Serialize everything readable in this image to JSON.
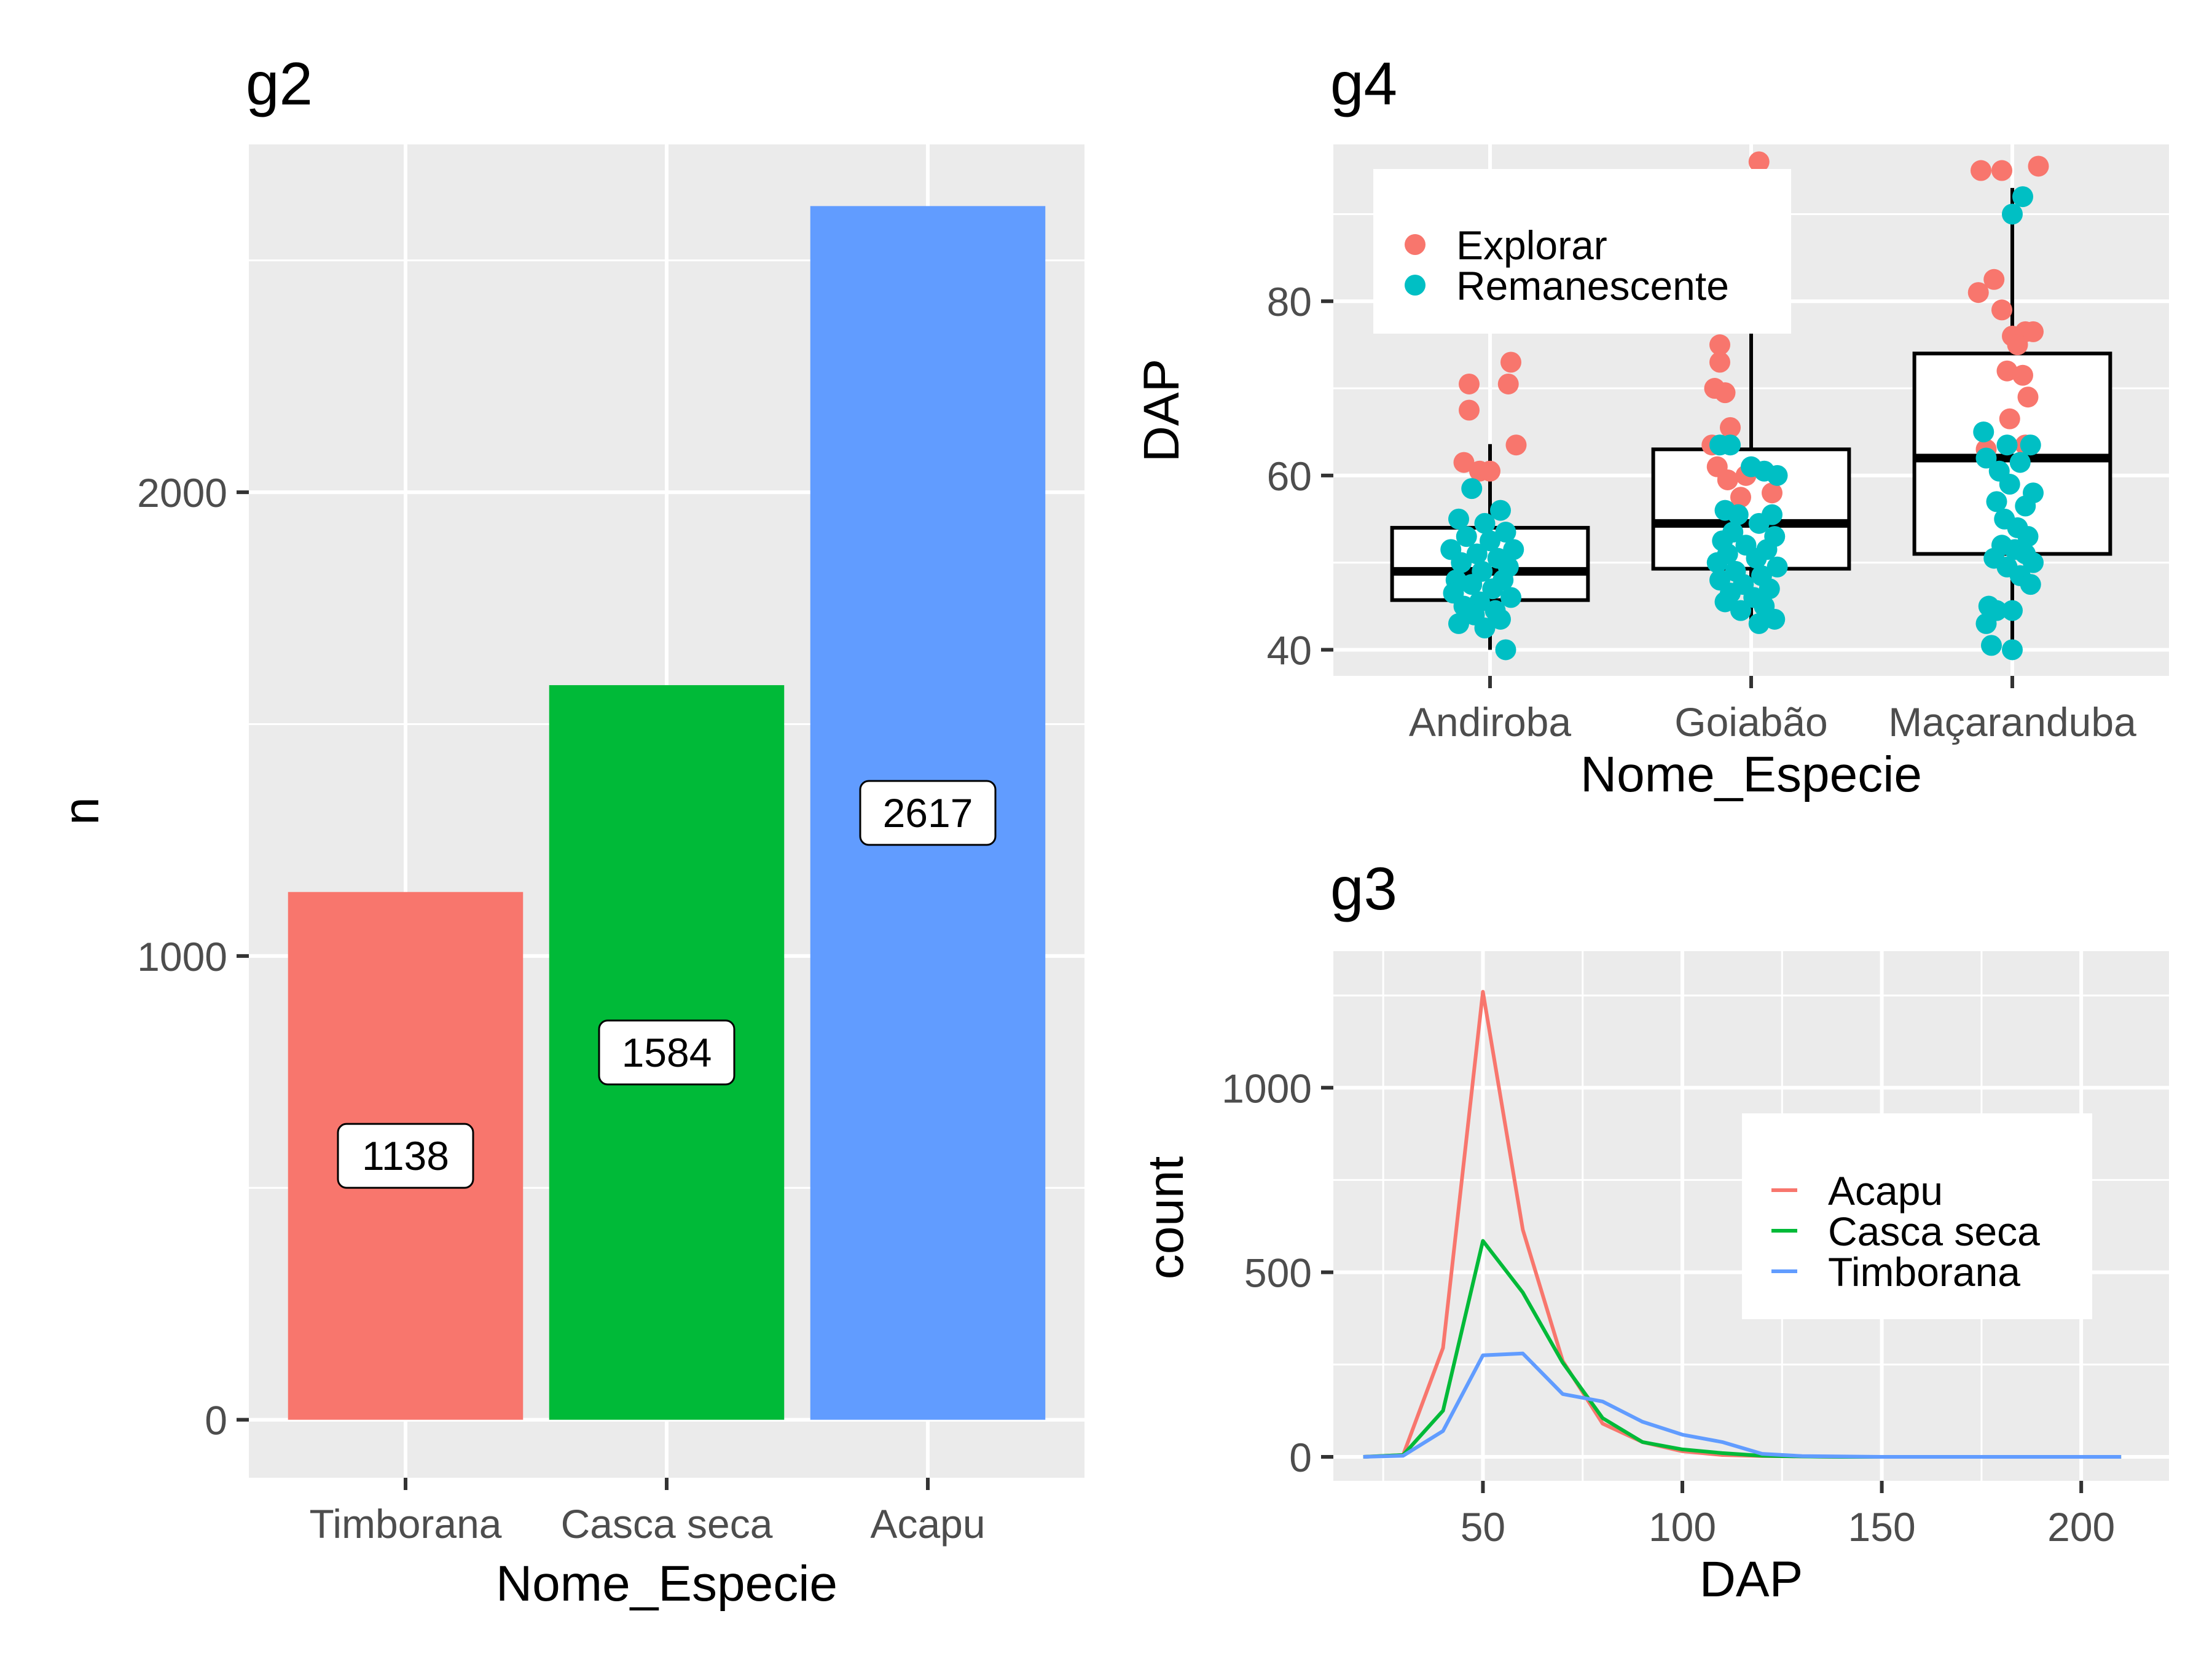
{
  "chart_data": [
    {
      "id": "g2",
      "type": "bar",
      "title": "g2",
      "xlabel": "Nome_Especie",
      "ylabel": "n",
      "categories": [
        "Timborana",
        "Casca seca",
        "Acapu"
      ],
      "values": [
        1138,
        1584,
        2617
      ],
      "value_labels": [
        "1138",
        "1584",
        "2617"
      ],
      "colors": [
        "#F8766D",
        "#00BA38",
        "#619CFF"
      ],
      "ylim": [
        -125,
        2750
      ],
      "yticks": [
        0,
        1000,
        2000
      ],
      "ytick_labels": [
        "0",
        "1000",
        "2000"
      ],
      "grid": true
    },
    {
      "id": "g4",
      "type": "scatter",
      "subtype": "boxplot-with-jitter",
      "title": "g4",
      "xlabel": "Nome_Especie",
      "ylabel": "DAP",
      "categories": [
        "Andiroba",
        "Goiabão",
        "Maçaranduba"
      ],
      "ylim": [
        37,
        98
      ],
      "yticks": [
        40,
        60,
        80
      ],
      "ytick_labels": [
        "40",
        "60",
        "80"
      ],
      "grid": true,
      "legend_position": "top-left",
      "boxes": [
        {
          "category": "Andiroba",
          "lower_whisker": 40,
          "q1": 45.7,
          "median": 49,
          "q3": 54,
          "upper_whisker": 63.6
        },
        {
          "category": "Goiabão",
          "lower_whisker": 43,
          "q1": 49.3,
          "median": 54.5,
          "q3": 63,
          "upper_whisker": 79
        },
        {
          "category": "Maçaranduba",
          "lower_whisker": 40,
          "q1": 51,
          "median": 62,
          "q3": 74,
          "upper_whisker": 93
        }
      ],
      "series": [
        {
          "name": "Explorar",
          "color": "#F8766D",
          "points": [
            {
              "category": "Andiroba",
              "offset": -0.08,
              "y": 70.5
            },
            {
              "category": "Andiroba",
              "offset": 0.07,
              "y": 70.5
            },
            {
              "category": "Andiroba",
              "offset": 0.08,
              "y": 73
            },
            {
              "category": "Andiroba",
              "offset": -0.08,
              "y": 67.5
            },
            {
              "category": "Andiroba",
              "offset": 0.1,
              "y": 63.5
            },
            {
              "category": "Andiroba",
              "offset": -0.1,
              "y": 61.5
            },
            {
              "category": "Andiroba",
              "offset": -0.04,
              "y": 60.5
            },
            {
              "category": "Andiroba",
              "offset": 0.0,
              "y": 60.5
            },
            {
              "category": "Goiabão",
              "offset": 0.03,
              "y": 96
            },
            {
              "category": "Goiabão",
              "offset": -0.12,
              "y": 75
            },
            {
              "category": "Goiabão",
              "offset": -0.12,
              "y": 73
            },
            {
              "category": "Goiabão",
              "offset": -0.14,
              "y": 70
            },
            {
              "category": "Goiabão",
              "offset": -0.1,
              "y": 69.5
            },
            {
              "category": "Goiabão",
              "offset": -0.08,
              "y": 65.5
            },
            {
              "category": "Goiabão",
              "offset": -0.15,
              "y": 63.5
            },
            {
              "category": "Goiabão",
              "offset": -0.13,
              "y": 61
            },
            {
              "category": "Goiabão",
              "offset": -0.02,
              "y": 60
            },
            {
              "category": "Goiabão",
              "offset": -0.09,
              "y": 59.5
            },
            {
              "category": "Goiabão",
              "offset": 0.08,
              "y": 58
            },
            {
              "category": "Goiabão",
              "offset": -0.04,
              "y": 57.5
            },
            {
              "category": "Maçaranduba",
              "offset": -0.12,
              "y": 95
            },
            {
              "category": "Maçaranduba",
              "offset": -0.04,
              "y": 95
            },
            {
              "category": "Maçaranduba",
              "offset": 0.1,
              "y": 95.5
            },
            {
              "category": "Maçaranduba",
              "offset": -0.07,
              "y": 82.5
            },
            {
              "category": "Maçaranduba",
              "offset": -0.13,
              "y": 81
            },
            {
              "category": "Maçaranduba",
              "offset": -0.04,
              "y": 79
            },
            {
              "category": "Maçaranduba",
              "offset": 0.0,
              "y": 76
            },
            {
              "category": "Maçaranduba",
              "offset": 0.05,
              "y": 76.5
            },
            {
              "category": "Maçaranduba",
              "offset": 0.08,
              "y": 76.5
            },
            {
              "category": "Maçaranduba",
              "offset": 0.02,
              "y": 75
            },
            {
              "category": "Maçaranduba",
              "offset": -0.02,
              "y": 72
            },
            {
              "category": "Maçaranduba",
              "offset": 0.04,
              "y": 71.5
            },
            {
              "category": "Maçaranduba",
              "offset": 0.06,
              "y": 69
            },
            {
              "category": "Maçaranduba",
              "offset": -0.01,
              "y": 66.5
            },
            {
              "category": "Maçaranduba",
              "offset": -0.1,
              "y": 63
            },
            {
              "category": "Maçaranduba",
              "offset": 0.05,
              "y": 63.5
            }
          ]
        },
        {
          "name": "Remanescente",
          "color": "#00BFC4",
          "points": [
            {
              "category": "Andiroba",
              "offset": -0.07,
              "y": 58.5
            },
            {
              "category": "Andiroba",
              "offset": 0.04,
              "y": 56
            },
            {
              "category": "Andiroba",
              "offset": -0.12,
              "y": 55
            },
            {
              "category": "Andiroba",
              "offset": -0.02,
              "y": 54.5
            },
            {
              "category": "Andiroba",
              "offset": 0.06,
              "y": 53.5
            },
            {
              "category": "Andiroba",
              "offset": -0.09,
              "y": 53
            },
            {
              "category": "Andiroba",
              "offset": 0.0,
              "y": 52.5
            },
            {
              "category": "Andiroba",
              "offset": -0.15,
              "y": 51.5
            },
            {
              "category": "Andiroba",
              "offset": 0.09,
              "y": 51.5
            },
            {
              "category": "Andiroba",
              "offset": -0.05,
              "y": 51
            },
            {
              "category": "Andiroba",
              "offset": 0.03,
              "y": 50.5
            },
            {
              "category": "Andiroba",
              "offset": -0.11,
              "y": 50
            },
            {
              "category": "Andiroba",
              "offset": 0.07,
              "y": 49.5
            },
            {
              "category": "Andiroba",
              "offset": -0.03,
              "y": 49
            },
            {
              "category": "Andiroba",
              "offset": -0.13,
              "y": 48
            },
            {
              "category": "Andiroba",
              "offset": 0.05,
              "y": 48
            },
            {
              "category": "Andiroba",
              "offset": -0.07,
              "y": 47.5
            },
            {
              "category": "Andiroba",
              "offset": 0.01,
              "y": 47
            },
            {
              "category": "Andiroba",
              "offset": -0.14,
              "y": 46.5
            },
            {
              "category": "Andiroba",
              "offset": 0.08,
              "y": 46
            },
            {
              "category": "Andiroba",
              "offset": -0.04,
              "y": 45.5
            },
            {
              "category": "Andiroba",
              "offset": -0.1,
              "y": 45
            },
            {
              "category": "Andiroba",
              "offset": 0.02,
              "y": 44.5
            },
            {
              "category": "Andiroba",
              "offset": -0.06,
              "y": 44
            },
            {
              "category": "Andiroba",
              "offset": -0.12,
              "y": 43
            },
            {
              "category": "Andiroba",
              "offset": 0.04,
              "y": 43.5
            },
            {
              "category": "Andiroba",
              "offset": -0.02,
              "y": 42.5
            },
            {
              "category": "Andiroba",
              "offset": 0.06,
              "y": 40
            },
            {
              "category": "Goiabão",
              "offset": -0.12,
              "y": 63.5
            },
            {
              "category": "Goiabão",
              "offset": -0.08,
              "y": 63.5
            },
            {
              "category": "Goiabão",
              "offset": 0.0,
              "y": 61
            },
            {
              "category": "Goiabão",
              "offset": 0.05,
              "y": 60.5
            },
            {
              "category": "Goiabão",
              "offset": 0.1,
              "y": 60
            },
            {
              "category": "Goiabão",
              "offset": -0.1,
              "y": 56
            },
            {
              "category": "Goiabão",
              "offset": -0.05,
              "y": 55.5
            },
            {
              "category": "Goiabão",
              "offset": 0.08,
              "y": 55.5
            },
            {
              "category": "Goiabão",
              "offset": 0.03,
              "y": 54.5
            },
            {
              "category": "Goiabão",
              "offset": -0.07,
              "y": 53.5
            },
            {
              "category": "Goiabão",
              "offset": 0.09,
              "y": 53
            },
            {
              "category": "Goiabão",
              "offset": -0.11,
              "y": 52.5
            },
            {
              "category": "Goiabão",
              "offset": -0.02,
              "y": 52
            },
            {
              "category": "Goiabão",
              "offset": 0.06,
              "y": 51.5
            },
            {
              "category": "Goiabão",
              "offset": -0.09,
              "y": 51
            },
            {
              "category": "Goiabão",
              "offset": 0.02,
              "y": 50.5
            },
            {
              "category": "Goiabão",
              "offset": -0.13,
              "y": 50
            },
            {
              "category": "Goiabão",
              "offset": 0.1,
              "y": 49.5
            },
            {
              "category": "Goiabão",
              "offset": -0.06,
              "y": 49
            },
            {
              "category": "Goiabão",
              "offset": 0.04,
              "y": 48.5
            },
            {
              "category": "Goiabão",
              "offset": -0.12,
              "y": 48
            },
            {
              "category": "Goiabão",
              "offset": -0.03,
              "y": 47.5
            },
            {
              "category": "Goiabão",
              "offset": 0.07,
              "y": 47
            },
            {
              "category": "Goiabão",
              "offset": -0.08,
              "y": 46.5
            },
            {
              "category": "Goiabão",
              "offset": 0.01,
              "y": 46
            },
            {
              "category": "Goiabão",
              "offset": -0.1,
              "y": 45.5
            },
            {
              "category": "Goiabão",
              "offset": 0.05,
              "y": 45
            },
            {
              "category": "Goiabão",
              "offset": -0.04,
              "y": 44.5
            },
            {
              "category": "Goiabão",
              "offset": 0.09,
              "y": 43.5
            },
            {
              "category": "Goiabão",
              "offset": 0.03,
              "y": 43
            },
            {
              "category": "Maçaranduba",
              "offset": 0.04,
              "y": 92
            },
            {
              "category": "Maçaranduba",
              "offset": 0.0,
              "y": 90
            },
            {
              "category": "Maçaranduba",
              "offset": -0.11,
              "y": 65
            },
            {
              "category": "Maçaranduba",
              "offset": -0.02,
              "y": 63.5
            },
            {
              "category": "Maçaranduba",
              "offset": 0.07,
              "y": 63.5
            },
            {
              "category": "Maçaranduba",
              "offset": -0.1,
              "y": 62
            },
            {
              "category": "Maçaranduba",
              "offset": 0.03,
              "y": 61.5
            },
            {
              "category": "Maçaranduba",
              "offset": -0.05,
              "y": 60.5
            },
            {
              "category": "Maçaranduba",
              "offset": -0.01,
              "y": 59
            },
            {
              "category": "Maçaranduba",
              "offset": 0.08,
              "y": 58
            },
            {
              "category": "Maçaranduba",
              "offset": -0.06,
              "y": 57
            },
            {
              "category": "Maçaranduba",
              "offset": 0.05,
              "y": 56.5
            },
            {
              "category": "Maçaranduba",
              "offset": -0.03,
              "y": 55
            },
            {
              "category": "Maçaranduba",
              "offset": 0.02,
              "y": 54
            },
            {
              "category": "Maçaranduba",
              "offset": 0.06,
              "y": 53
            },
            {
              "category": "Maçaranduba",
              "offset": -0.04,
              "y": 52
            },
            {
              "category": "Maçaranduba",
              "offset": 0.01,
              "y": 51.5
            },
            {
              "category": "Maçaranduba",
              "offset": 0.05,
              "y": 51
            },
            {
              "category": "Maçaranduba",
              "offset": -0.07,
              "y": 50.5
            },
            {
              "category": "Maçaranduba",
              "offset": 0.08,
              "y": 50
            },
            {
              "category": "Maçaranduba",
              "offset": -0.02,
              "y": 49.5
            },
            {
              "category": "Maçaranduba",
              "offset": 0.03,
              "y": 48.5
            },
            {
              "category": "Maçaranduba",
              "offset": 0.07,
              "y": 47.5
            },
            {
              "category": "Maçaranduba",
              "offset": -0.09,
              "y": 45
            },
            {
              "category": "Maçaranduba",
              "offset": -0.06,
              "y": 44.5
            },
            {
              "category": "Maçaranduba",
              "offset": 0.0,
              "y": 44.5
            },
            {
              "category": "Maçaranduba",
              "offset": -0.1,
              "y": 43
            },
            {
              "category": "Maçaranduba",
              "offset": -0.08,
              "y": 40.5
            },
            {
              "category": "Maçaranduba",
              "offset": 0.0,
              "y": 40
            }
          ]
        }
      ]
    },
    {
      "id": "g3",
      "type": "line",
      "title": "g3",
      "xlabel": "DAP",
      "ylabel": "count",
      "xlim": [
        12.5,
        222
      ],
      "ylim": [
        -65,
        1370
      ],
      "xticks": [
        50,
        100,
        150,
        200
      ],
      "xtick_labels": [
        "50",
        "100",
        "150",
        "200"
      ],
      "yticks": [
        0,
        500,
        1000
      ],
      "ytick_labels": [
        "0",
        "500",
        "1000"
      ],
      "grid": true,
      "legend_position": "right",
      "series": [
        {
          "name": "Acapu",
          "color": "#F8766D",
          "x": [
            20,
            30,
            40,
            50,
            60,
            70,
            80,
            90,
            100,
            110,
            120,
            130,
            140,
            150,
            160,
            170,
            180,
            190,
            200,
            210
          ],
          "y": [
            0,
            5,
            295,
            1260,
            615,
            260,
            90,
            40,
            15,
            5,
            2,
            1,
            0,
            0,
            0,
            0,
            0,
            0,
            0,
            0
          ]
        },
        {
          "name": "Casca seca",
          "color": "#00BA38",
          "x": [
            20,
            30,
            40,
            50,
            60,
            70,
            80,
            90,
            100,
            110,
            120,
            130,
            140,
            150,
            160,
            170,
            180,
            190,
            200,
            210
          ],
          "y": [
            0,
            5,
            125,
            585,
            445,
            255,
            105,
            40,
            20,
            10,
            3,
            1,
            0,
            0,
            0,
            0,
            0,
            0,
            0,
            0
          ]
        },
        {
          "name": "Timborana",
          "color": "#619CFF",
          "x": [
            20,
            30,
            40,
            50,
            60,
            70,
            80,
            90,
            100,
            110,
            120,
            130,
            140,
            150,
            160,
            170,
            180,
            190,
            200,
            210
          ],
          "y": [
            0,
            3,
            70,
            275,
            280,
            170,
            150,
            95,
            60,
            40,
            8,
            2,
            1,
            0,
            0,
            0,
            0,
            0,
            0,
            0
          ]
        }
      ]
    }
  ]
}
